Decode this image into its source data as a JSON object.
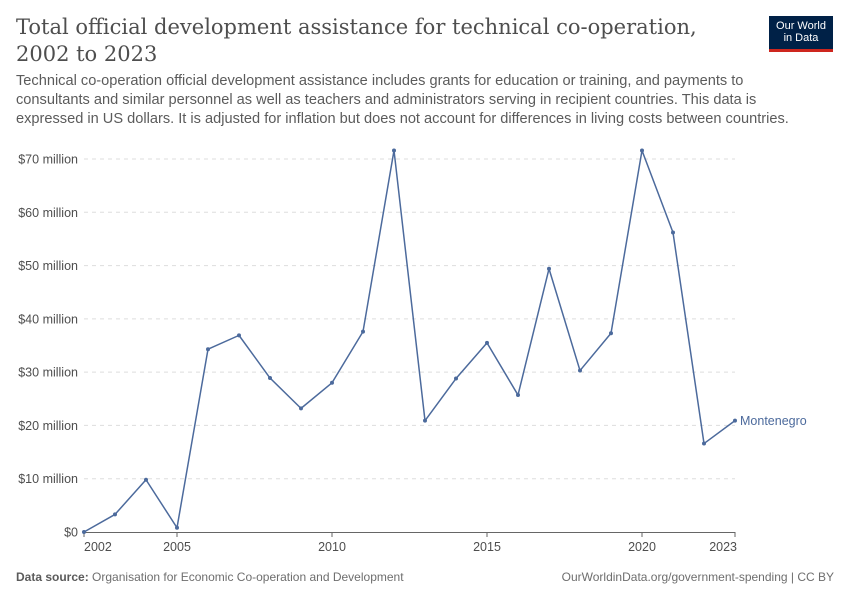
{
  "header": {
    "title": "Total official development assistance for technical co-operation, 2002 to 2023",
    "subtitle": "Technical co-operation official development assistance includes grants for education or training, and payments to consultants and similar personnel as well as teachers and administrators serving in recipient countries. This data is expressed in US dollars. It is adjusted for inflation but does not account for differences in living costs between countries."
  },
  "logo": {
    "line1": "Our World",
    "line2": "in Data"
  },
  "footer": {
    "source_label": "Data source:",
    "source_text": "Organisation for Economic Co-operation and Development",
    "url_text": "OurWorldinData.org/government-spending | CC BY"
  },
  "colors": {
    "series": "#4c6a9c",
    "grid": "#dddddd",
    "axis": "#666666",
    "text": "#4e4e4e"
  },
  "chart_data": {
    "type": "line",
    "title": "Total official development assistance for technical co-operation, 2002 to 2023",
    "xlabel": "",
    "ylabel": "",
    "xlim": [
      2002,
      2023
    ],
    "ylim": [
      0,
      70000000
    ],
    "grid": "horizontal-dashed",
    "x_ticks": [
      2002,
      2005,
      2010,
      2015,
      2020,
      2023
    ],
    "y_ticks": [
      {
        "value": 0,
        "label": "$0"
      },
      {
        "value": 10000000,
        "label": "$10 million"
      },
      {
        "value": 20000000,
        "label": "$20 million"
      },
      {
        "value": 30000000,
        "label": "$30 million"
      },
      {
        "value": 40000000,
        "label": "$40 million"
      },
      {
        "value": 50000000,
        "label": "$50 million"
      },
      {
        "value": 60000000,
        "label": "$60 million"
      },
      {
        "value": 70000000,
        "label": "$70 million"
      }
    ],
    "series": [
      {
        "name": "Montenegro",
        "points": [
          {
            "x": 2002,
            "y": 0
          },
          {
            "x": 2003,
            "y": 3300000
          },
          {
            "x": 2004,
            "y": 9800000
          },
          {
            "x": 2005,
            "y": 800000
          },
          {
            "x": 2006,
            "y": 34300000
          },
          {
            "x": 2007,
            "y": 36900000
          },
          {
            "x": 2008,
            "y": 28900000
          },
          {
            "x": 2009,
            "y": 23200000
          },
          {
            "x": 2010,
            "y": 28000000
          },
          {
            "x": 2011,
            "y": 37600000
          },
          {
            "x": 2012,
            "y": 71600000
          },
          {
            "x": 2013,
            "y": 20900000
          },
          {
            "x": 2014,
            "y": 28800000
          },
          {
            "x": 2015,
            "y": 35500000
          },
          {
            "x": 2016,
            "y": 25700000
          },
          {
            "x": 2017,
            "y": 49400000
          },
          {
            "x": 2018,
            "y": 30300000
          },
          {
            "x": 2019,
            "y": 37300000
          },
          {
            "x": 2020,
            "y": 71600000
          },
          {
            "x": 2021,
            "y": 56200000
          },
          {
            "x": 2022,
            "y": 16600000
          },
          {
            "x": 2023,
            "y": 20900000
          }
        ]
      }
    ]
  }
}
